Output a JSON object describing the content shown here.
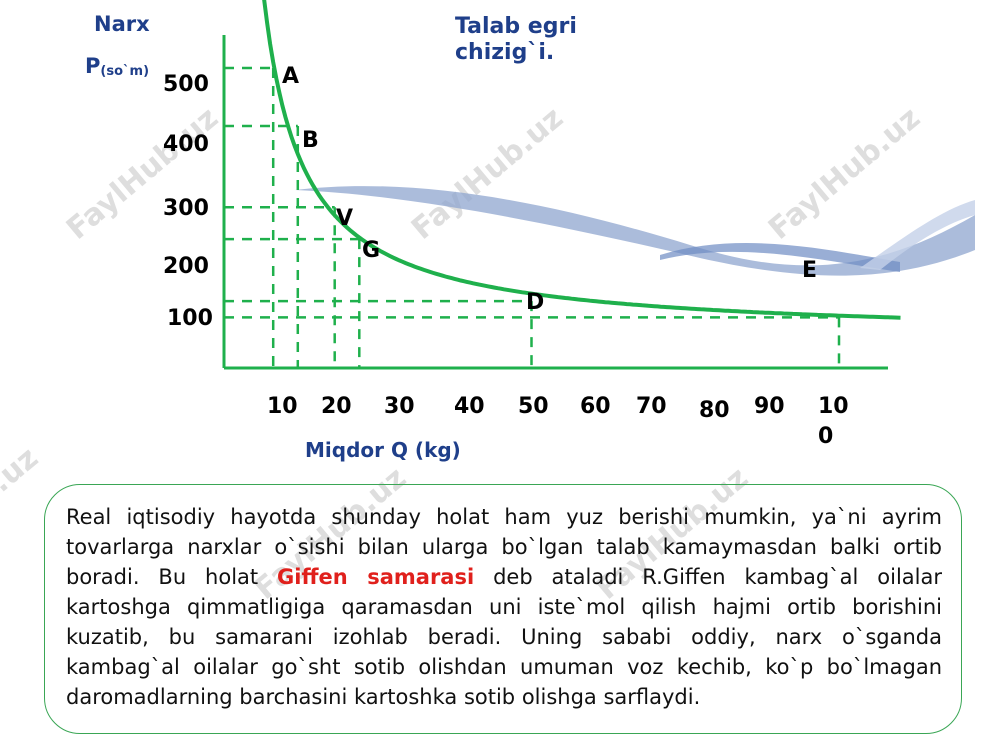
{
  "chart_data": {
    "type": "line",
    "title": "Talab egri chizig`i.",
    "title_line1": "Talab egri",
    "title_line2": "chizig`i.",
    "ylabel": "Narx",
    "ylabel_symbol": "P",
    "ylabel_unit": "(so`m)",
    "xlabel": "Miqdor Q (kg)",
    "y_ticks": [
      "500",
      "400",
      "300",
      "200",
      "100"
    ],
    "x_ticks": [
      "10",
      "20",
      "30",
      "40",
      "50",
      "60",
      "70",
      "80",
      "90",
      "10\n0"
    ],
    "points": [
      {
        "label": "A",
        "q": 8,
        "p": 500
      },
      {
        "label": "B",
        "q": 12,
        "p": 400
      },
      {
        "label": "V",
        "q": 18,
        "p": 260
      },
      {
        "label": "G",
        "q": 22,
        "p": 205
      },
      {
        "label": "D",
        "q": 50,
        "p": 98
      },
      {
        "label": "E",
        "q": 100,
        "p": 70
      }
    ],
    "curve_color": "#1fb04c",
    "grid": false
  },
  "watermark": "FaylHub.uz",
  "paragraph": {
    "before": "Real iqtisodiy hayotda shunday holat ham yuz berishi mumkin, ya`ni ayrim tovarlarga narxlar o`sishi bilan ularga bo`lgan talab  kamaymasdan balki ortib boradi. Bu holat ",
    "highlight": "Giffen samarasi",
    "after": " deb  ataladi R.Giffen kambag`al oilalar  kartoshga qimmatligiga qaramasdan uni iste`mol qilish hajmi ortib borishini kuzatib, bu samarani izohlab beradi. Uning sababi oddiy, narx o`sganda kambag`al oilalar  go`sht sotib olishdan umuman voz kechib, ko`p  bo`lmagan daromadlarning barchasini kartoshka sotib olishga sarflaydi.",
    "highlight_color": "#e0201c"
  }
}
